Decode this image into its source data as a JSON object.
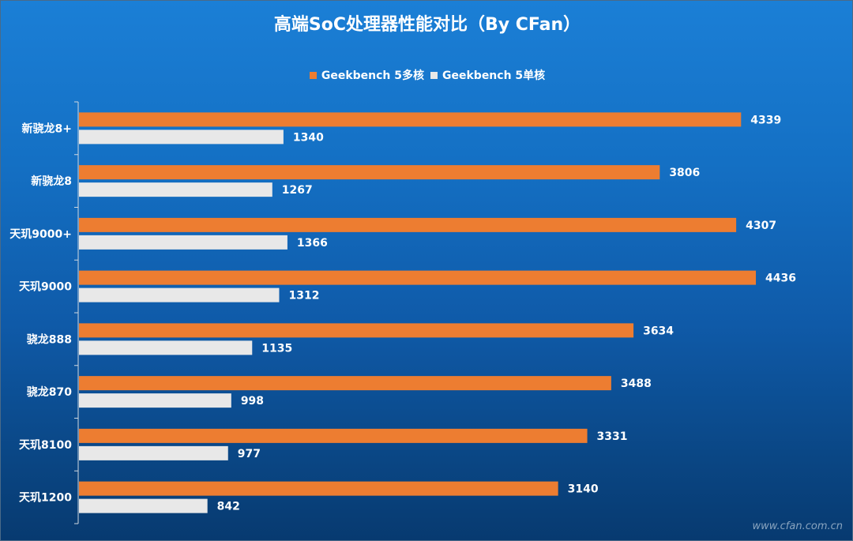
{
  "watermark": "www.cfan.com.cn",
  "colors": {
    "multi": "#ed7d31",
    "single": "#e8e8e8",
    "text": "#ffffff",
    "axis": "#d0d8e0"
  },
  "chart_data": {
    "type": "bar",
    "orientation": "horizontal",
    "title": "高端SoC处理器性能对比（By CFan）",
    "categories": [
      "新骁龙8+",
      "新骁龙8",
      "天玑9000+",
      "天玑9000",
      "骁龙888",
      "骁龙870",
      "天玑8100",
      "天玑1200"
    ],
    "series": [
      {
        "name": "Geekbench 5多核",
        "color": "#ed7d31",
        "values": [
          4339,
          3806,
          4307,
          4436,
          3634,
          3488,
          3331,
          3140
        ]
      },
      {
        "name": "Geekbench 5单核",
        "color": "#e8e8e8",
        "values": [
          1340,
          1267,
          1366,
          1312,
          1135,
          998,
          977,
          842
        ]
      }
    ],
    "xlim": [
      0,
      5000
    ],
    "legend": "top-center",
    "grid": false,
    "data_labels": true
  }
}
